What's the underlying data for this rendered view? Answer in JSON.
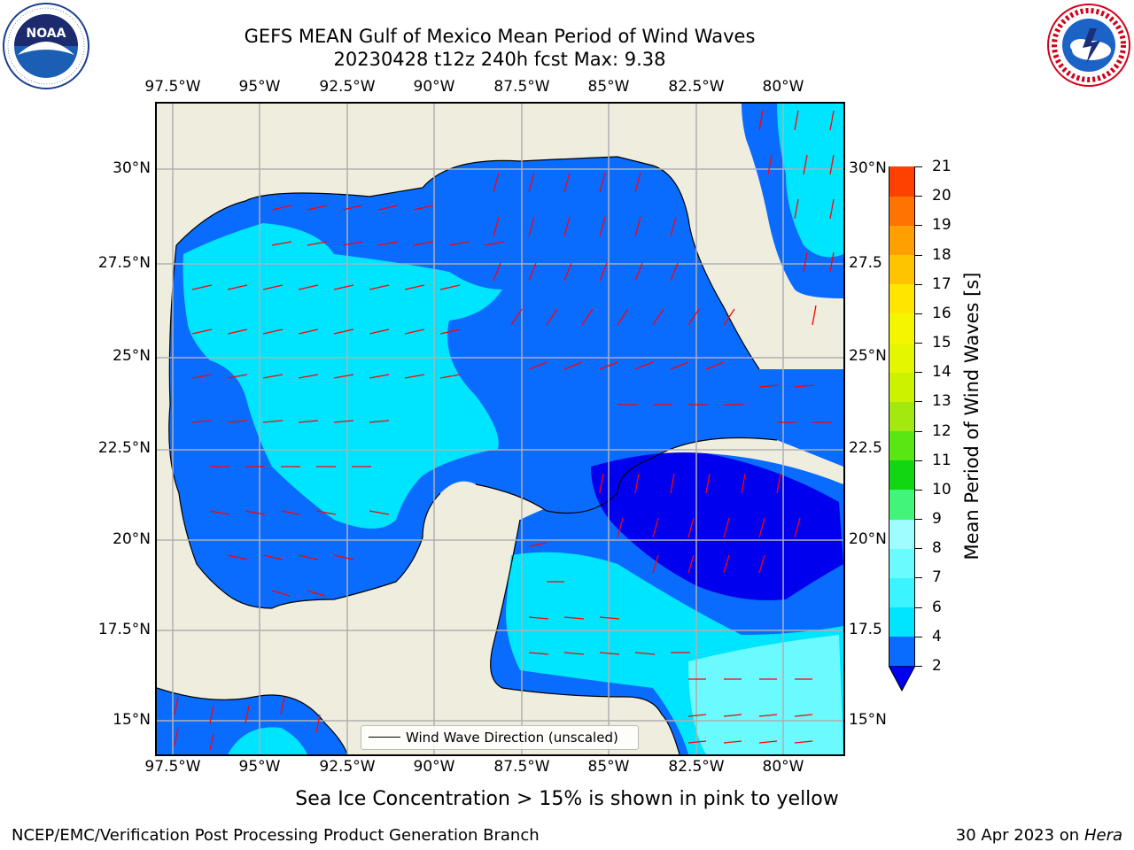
{
  "title_line1": "GEFS MEAN Gulf of Mexico Mean Period of Wind Waves",
  "title_line2": "20230428 t12z 240h fcst   Max: 9.38",
  "lon_labels": [
    "97.5°W",
    "95°W",
    "92.5°W",
    "90°W",
    "87.5°W",
    "85°W",
    "82.5°W",
    "80°W"
  ],
  "lat_labels_left": [
    "30°N",
    "27.5°N",
    "25°N",
    "22.5°N",
    "20°N",
    "17.5°N",
    "15°N"
  ],
  "lat_labels_right": [
    "30°N",
    "27.5",
    "25°N",
    "22.5",
    "20°N",
    "17.5",
    "15°N"
  ],
  "legend_label": "Wind Wave Direction (unscaled)",
  "colorbar": {
    "title": "Mean Period of Wind Waves [s]",
    "ticks": [
      "2",
      "4",
      "6",
      "7",
      "8",
      "9",
      "10",
      "11",
      "12",
      "13",
      "14",
      "15",
      "16",
      "17",
      "18",
      "19",
      "20",
      "21"
    ],
    "colors": [
      "#0a6cff",
      "#00e5ff",
      "#3af5ff",
      "#69fbff",
      "#9ffcff",
      "#42f57a",
      "#11d611",
      "#5ae612",
      "#a3e80f",
      "#ccf200",
      "#e5f700",
      "#f5f500",
      "#ffe600",
      "#ffc400",
      "#ff9f00",
      "#ff7300",
      "#ff4100",
      "#ff0a00"
    ],
    "under_color": "#0000ee"
  },
  "footer_note": "Sea Ice Concentration > 15% is shown in pink to yellow",
  "footer_left": "NCEP/EMC/Verification Post Processing Product Generation Branch",
  "footer_date": "30 Apr 2023 on ",
  "footer_system": "Hera",
  "logos": {
    "noaa_text": "NOAA",
    "noaa_ring": "NATIONAL OCEANIC AND ATMOSPHERIC ADMINISTRATION · U.S. DEPARTMENT OF COMMERCE",
    "nws_ring": "NATIONAL WEATHER SERVICE"
  },
  "colors": {
    "land": "#efedde",
    "wave_2_4": "#0a6cff",
    "wave_4_6": "#00e5ff",
    "wave_6_8": "#6afaff",
    "wave_low": "#0000ee",
    "arrow": "#ff0000",
    "grid": "#b0b0b0"
  }
}
